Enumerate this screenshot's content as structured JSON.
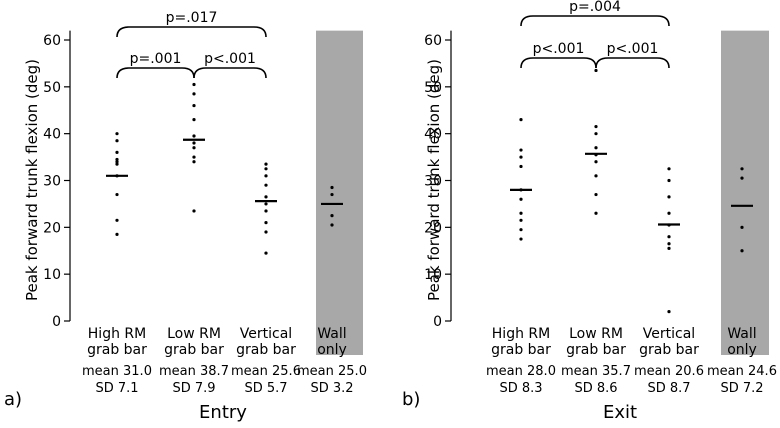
{
  "chart_data": [
    {
      "type": "scatter",
      "panel_label": "a)",
      "title": "Entry",
      "ylabel": "Peak forward trunk flexion (deg)",
      "ylim": [
        0,
        62
      ],
      "yticks": [
        0,
        10,
        20,
        30,
        40,
        50,
        60
      ],
      "shaded_category_index": 3,
      "categories": [
        {
          "label_lines": [
            "High RM",
            "grab bar"
          ],
          "mean": 31.0,
          "stats": [
            "mean 31.0",
            "SD 7.1"
          ],
          "points": [
            18.5,
            21.5,
            27.0,
            31.0,
            33.5,
            34.0,
            34.5,
            36.0,
            38.5,
            40.0
          ]
        },
        {
          "label_lines": [
            "Low RM",
            "grab bar"
          ],
          "mean": 38.7,
          "stats": [
            "mean 38.7",
            "SD 7.9"
          ],
          "points": [
            23.5,
            34.0,
            35.0,
            37.0,
            38.0,
            39.5,
            43.0,
            46.0,
            48.5,
            50.5
          ]
        },
        {
          "label_lines": [
            "Vertical",
            "grab bar"
          ],
          "mean": 25.6,
          "stats": [
            "mean 25.6",
            "SD 5.7"
          ],
          "points": [
            14.5,
            19.0,
            21.0,
            23.5,
            25.0,
            26.5,
            29.0,
            31.0,
            32.5,
            33.5
          ]
        },
        {
          "label_lines": [
            "Wall",
            "only"
          ],
          "mean": 25.0,
          "stats": [
            "mean 25.0",
            "SD 3.2"
          ],
          "points": [
            20.5,
            22.5,
            27.0,
            28.5
          ]
        }
      ],
      "comparisons": [
        {
          "from": 0,
          "to": 2,
          "label": "p=.017",
          "level": 2
        },
        {
          "from": 0,
          "to": 1,
          "label": "p=.001",
          "level": 1
        },
        {
          "from": 1,
          "to": 2,
          "label": "p<.001",
          "level": 1
        }
      ]
    },
    {
      "type": "scatter",
      "panel_label": "b)",
      "title": "Exit",
      "ylabel": "Peak forward trunk flexion (deg)",
      "ylim": [
        0,
        62
      ],
      "yticks": [
        0,
        10,
        20,
        30,
        40,
        50,
        60
      ],
      "shaded_category_index": 3,
      "categories": [
        {
          "label_lines": [
            "High RM",
            "grab bar"
          ],
          "mean": 28.0,
          "stats": [
            "mean 28.0",
            "SD 8.3"
          ],
          "points": [
            17.5,
            19.5,
            21.5,
            23.0,
            26.0,
            28.0,
            33.0,
            35.0,
            36.5,
            43.0
          ]
        },
        {
          "label_lines": [
            "Low RM",
            "grab bar"
          ],
          "mean": 35.7,
          "stats": [
            "mean 35.7",
            "SD 8.6"
          ],
          "points": [
            23.0,
            27.0,
            31.0,
            34.0,
            35.5,
            37.0,
            40.0,
            41.5,
            53.5
          ]
        },
        {
          "label_lines": [
            "Vertical",
            "grab bar"
          ],
          "mean": 20.6,
          "stats": [
            "mean 20.6",
            "SD 8.7"
          ],
          "points": [
            2.0,
            15.5,
            16.5,
            18.0,
            20.5,
            23.0,
            26.5,
            30.0,
            32.5
          ]
        },
        {
          "label_lines": [
            "Wall",
            "only"
          ],
          "mean": 24.6,
          "stats": [
            "mean 24.6",
            "SD 7.2"
          ],
          "points": [
            15.0,
            20.0,
            30.5,
            32.5
          ]
        }
      ],
      "comparisons": [
        {
          "from": 0,
          "to": 2,
          "label": "p=.004",
          "level": 2
        },
        {
          "from": 0,
          "to": 1,
          "label": "p<.001",
          "level": 1
        },
        {
          "from": 1,
          "to": 2,
          "label": "p<.001",
          "level": 1
        }
      ]
    }
  ]
}
